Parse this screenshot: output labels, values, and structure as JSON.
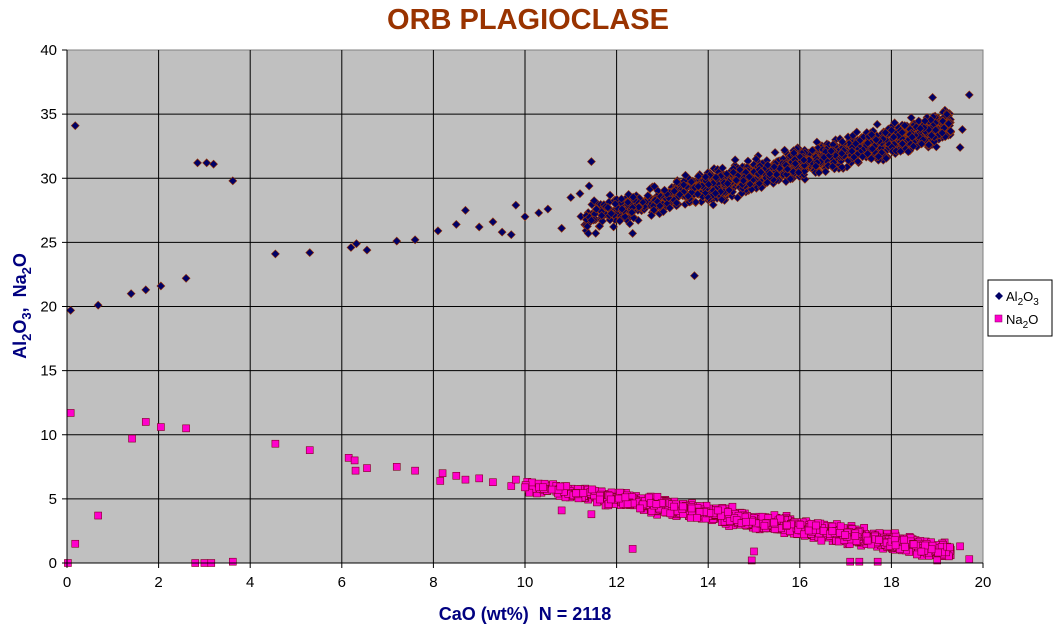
{
  "chart_data": {
    "type": "scatter",
    "title": "ORB PLAGIOCLASE",
    "xlabel": "CaO (wt%)  N = 2118",
    "ylabel": {
      "prefix": "Al",
      "sub1": "2",
      "mid": "O",
      "sub2": "3",
      "sep": ",  Na",
      "sub3": "2",
      "suffix": "O"
    },
    "xlim": [
      0,
      20
    ],
    "ylim": [
      0,
      40
    ],
    "xticks": [
      "0",
      "2",
      "4",
      "6",
      "8",
      "10",
      "12",
      "14",
      "16",
      "18",
      "20"
    ],
    "yticks": [
      "0",
      "5",
      "10",
      "15",
      "20",
      "25",
      "30",
      "35",
      "40"
    ],
    "grid": true,
    "plot_background": "#c0c0c0",
    "legend_position": "right",
    "series": [
      {
        "name": "Al2O3",
        "label": {
          "base": "Al",
          "sub1": "2",
          "mid": "O",
          "sub2": "3"
        },
        "marker": "diamond",
        "color": "#000066",
        "points": [
          [
            0.08,
            19.7
          ],
          [
            0.18,
            34.1
          ],
          [
            0.68,
            20.1
          ],
          [
            1.4,
            21
          ],
          [
            1.72,
            21.3
          ],
          [
            2.05,
            21.6
          ],
          [
            2.6,
            22.2
          ],
          [
            2.85,
            31.2
          ],
          [
            3.05,
            31.2
          ],
          [
            3.2,
            31.1
          ],
          [
            3.62,
            29.8
          ],
          [
            4.55,
            24.1
          ],
          [
            5.3,
            24.2
          ],
          [
            6.2,
            24.6
          ],
          [
            6.32,
            24.9
          ],
          [
            6.55,
            24.4
          ],
          [
            7.2,
            25.1
          ],
          [
            7.6,
            25.2
          ],
          [
            8.1,
            25.9
          ],
          [
            8.5,
            26.4
          ],
          [
            8.7,
            27.5
          ],
          [
            9.0,
            26.2
          ],
          [
            9.3,
            26.6
          ],
          [
            9.5,
            25.8
          ],
          [
            9.7,
            25.6
          ],
          [
            9.8,
            27.9
          ],
          [
            10.0,
            27.0
          ],
          [
            10.3,
            27.3
          ],
          [
            10.5,
            27.6
          ],
          [
            10.8,
            26.1
          ],
          [
            11.0,
            28.5
          ],
          [
            11.2,
            28.8
          ],
          [
            11.4,
            29.4
          ],
          [
            11.45,
            31.3
          ],
          [
            12.35,
            25.7
          ],
          [
            13.7,
            22.4
          ],
          [
            18.2,
            32.1
          ],
          [
            18.9,
            36.3
          ],
          [
            19.5,
            32.4
          ],
          [
            19.55,
            33.8
          ],
          [
            19.7,
            36.5
          ]
        ],
        "trend": {
          "x_range": [
            11.2,
            19.3
          ],
          "intercept": 16.4,
          "slope": 0.92,
          "spread": 1.1,
          "count": 1500
        }
      },
      {
        "name": "Na2O",
        "label": {
          "base": "Na",
          "sub1": "2",
          "mid": "O",
          "sub2": ""
        },
        "marker": "square",
        "color": "#ff00cc",
        "points": [
          [
            0.02,
            0.0
          ],
          [
            0.08,
            11.7
          ],
          [
            0.18,
            1.5
          ],
          [
            0.68,
            3.7
          ],
          [
            1.42,
            9.7
          ],
          [
            1.72,
            11.0
          ],
          [
            2.05,
            10.6
          ],
          [
            2.6,
            10.5
          ],
          [
            2.8,
            0.0
          ],
          [
            3.0,
            0.0
          ],
          [
            3.15,
            0.0
          ],
          [
            3.62,
            0.1
          ],
          [
            4.55,
            9.3
          ],
          [
            5.3,
            8.8
          ],
          [
            6.15,
            8.2
          ],
          [
            6.28,
            8.0
          ],
          [
            6.3,
            7.2
          ],
          [
            6.55,
            7.4
          ],
          [
            7.2,
            7.5
          ],
          [
            7.6,
            7.2
          ],
          [
            8.15,
            6.4
          ],
          [
            8.2,
            7.0
          ],
          [
            8.5,
            6.8
          ],
          [
            8.7,
            6.5
          ],
          [
            9.0,
            6.6
          ],
          [
            9.3,
            6.3
          ],
          [
            9.7,
            6.0
          ],
          [
            9.8,
            6.5
          ],
          [
            10.0,
            5.9
          ],
          [
            10.8,
            4.1
          ],
          [
            11.45,
            3.8
          ],
          [
            12.35,
            1.1
          ],
          [
            14.95,
            0.2
          ],
          [
            15.0,
            0.9
          ],
          [
            17.1,
            0.1
          ],
          [
            17.3,
            0.1
          ],
          [
            17.7,
            0.1
          ],
          [
            19.0,
            0.2
          ],
          [
            19.5,
            1.3
          ],
          [
            19.7,
            0.3
          ]
        ],
        "trend": {
          "x_range": [
            10.0,
            19.3
          ],
          "intercept": 11.7,
          "slope": -0.56,
          "spread": 0.55,
          "count": 1500
        }
      }
    ]
  }
}
